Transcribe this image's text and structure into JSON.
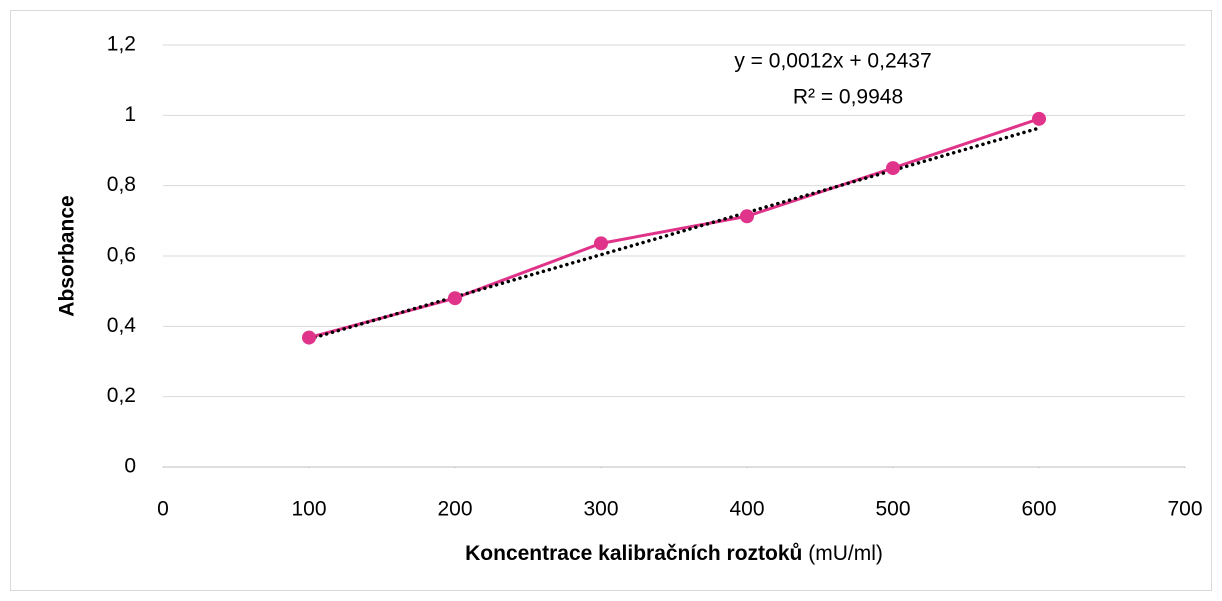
{
  "chart_data": {
    "type": "scatter",
    "xlabel": "Koncentrace kalibračních roztoků",
    "xlabel_unit": "(mU/ml)",
    "ylabel": "Absorbance",
    "x": [
      100,
      200,
      300,
      400,
      500,
      600
    ],
    "series": [
      {
        "color": "#e0338a",
        "values": [
          0.368,
          0.48,
          0.636,
          0.713,
          0.85,
          0.99
        ]
      }
    ],
    "trendline": {
      "slope": 0.0012,
      "intercept": 0.2437,
      "color": "#000000",
      "equation": "y = 0,0012x + 0,2437",
      "r2": "R² = 0,9948"
    },
    "xlim": [
      0,
      700
    ],
    "xticks": [
      0,
      100,
      200,
      300,
      400,
      500,
      600,
      700
    ],
    "ylim": [
      0,
      1.2
    ],
    "yticks": [
      0,
      {
        "value": 0.2,
        "label": "0,2"
      },
      {
        "value": 0.4,
        "label": "0,4"
      },
      {
        "value": 0.6,
        "label": "0,6"
      },
      {
        "value": 0.8,
        "label": "0,8"
      },
      1,
      {
        "value": 1.2,
        "label": "1,2"
      }
    ],
    "grid": true
  }
}
